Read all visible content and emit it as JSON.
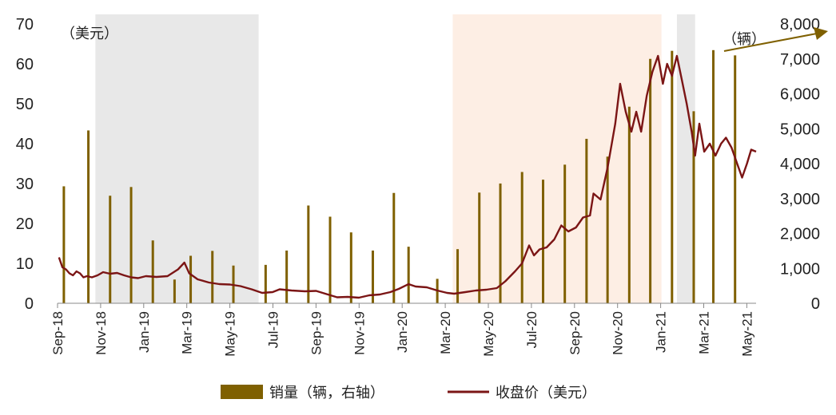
{
  "chart_data": {
    "type": "bar+line",
    "x_labels": [
      "Sep-18",
      "Nov-18",
      "Jan-19",
      "Mar-19",
      "May-19",
      "Jul-19",
      "Sep-19",
      "Nov-19",
      "Jan-20",
      "Mar-20",
      "May-20",
      "Jul-20",
      "Sep-20",
      "Nov-20",
      "Jan-21",
      "Mar-21",
      "May-21"
    ],
    "x_range": [
      "2018-09-01",
      "2021-05-25"
    ],
    "y_left": {
      "label": "（美元）",
      "ticks": [
        "0",
        "10",
        "20",
        "30",
        "40",
        "50",
        "60",
        "70"
      ],
      "range": [
        0,
        70
      ]
    },
    "y_right": {
      "label": "（辆）",
      "ticks": [
        "0",
        "1,000",
        "2,000",
        "3,000",
        "4,000",
        "5,000",
        "6,000",
        "7,000",
        "8,000"
      ],
      "range": [
        0,
        8000
      ]
    },
    "shaded_regions": [
      {
        "start": "2018-10-25",
        "end": "2019-06-15",
        "color": "#e8e8e8"
      },
      {
        "start": "2020-03-18",
        "end": "2021-01-10",
        "color": "#fdeee4"
      },
      {
        "start": "2021-02-01",
        "end": "2021-02-27",
        "color": "#e8e8e8"
      }
    ],
    "series": [
      {
        "name": "销量（辆，右轴）",
        "kind": "bar",
        "axis": "right",
        "color": "#7f6000",
        "points": [
          {
            "date": "2018-09-10",
            "value": 3350
          },
          {
            "date": "2018-10-15",
            "value": 4950
          },
          {
            "date": "2018-11-15",
            "value": 3080
          },
          {
            "date": "2018-12-15",
            "value": 3330
          },
          {
            "date": "2019-01-15",
            "value": 1800
          },
          {
            "date": "2019-02-15",
            "value": 680
          },
          {
            "date": "2019-03-10",
            "value": 1360
          },
          {
            "date": "2019-04-10",
            "value": 1500
          },
          {
            "date": "2019-05-10",
            "value": 1080
          },
          {
            "date": "2019-06-25",
            "value": 1100
          },
          {
            "date": "2019-07-25",
            "value": 1510
          },
          {
            "date": "2019-08-25",
            "value": 2800
          },
          {
            "date": "2019-09-25",
            "value": 2480
          },
          {
            "date": "2019-10-25",
            "value": 2030
          },
          {
            "date": "2019-11-25",
            "value": 1510
          },
          {
            "date": "2019-12-25",
            "value": 3160
          },
          {
            "date": "2020-01-15",
            "value": 1620
          },
          {
            "date": "2020-02-25",
            "value": 700
          },
          {
            "date": "2020-03-25",
            "value": 1550
          },
          {
            "date": "2020-04-25",
            "value": 3170
          },
          {
            "date": "2020-05-25",
            "value": 3430
          },
          {
            "date": "2020-06-25",
            "value": 3760
          },
          {
            "date": "2020-07-25",
            "value": 3540
          },
          {
            "date": "2020-08-25",
            "value": 3970
          },
          {
            "date": "2020-09-25",
            "value": 4710
          },
          {
            "date": "2020-10-25",
            "value": 4200
          },
          {
            "date": "2020-11-25",
            "value": 5630
          },
          {
            "date": "2020-12-25",
            "value": 7000
          },
          {
            "date": "2021-01-25",
            "value": 7230
          },
          {
            "date": "2021-02-25",
            "value": 5500
          },
          {
            "date": "2021-03-25",
            "value": 7250
          },
          {
            "date": "2021-04-25",
            "value": 7100
          }
        ]
      },
      {
        "name": "收盘价（美元）",
        "kind": "line",
        "axis": "left",
        "color": "#7b1515",
        "points": [
          {
            "date": "2018-09-03",
            "value": 11.5
          },
          {
            "date": "2018-09-08",
            "value": 9.0
          },
          {
            "date": "2018-09-13",
            "value": 8.5
          },
          {
            "date": "2018-09-18",
            "value": 7.5
          },
          {
            "date": "2018-09-23",
            "value": 7.0
          },
          {
            "date": "2018-09-28",
            "value": 8.0
          },
          {
            "date": "2018-10-03",
            "value": 7.5
          },
          {
            "date": "2018-10-08",
            "value": 6.5
          },
          {
            "date": "2018-10-13",
            "value": 6.8
          },
          {
            "date": "2018-10-20",
            "value": 6.5
          },
          {
            "date": "2018-10-28",
            "value": 7.0
          },
          {
            "date": "2018-11-05",
            "value": 7.8
          },
          {
            "date": "2018-11-15",
            "value": 7.4
          },
          {
            "date": "2018-11-25",
            "value": 7.6
          },
          {
            "date": "2018-12-05",
            "value": 7.0
          },
          {
            "date": "2018-12-15",
            "value": 6.5
          },
          {
            "date": "2018-12-25",
            "value": 6.3
          },
          {
            "date": "2019-01-05",
            "value": 6.8
          },
          {
            "date": "2019-01-20",
            "value": 6.6
          },
          {
            "date": "2019-02-05",
            "value": 6.8
          },
          {
            "date": "2019-02-20",
            "value": 8.5
          },
          {
            "date": "2019-03-01",
            "value": 10.2
          },
          {
            "date": "2019-03-08",
            "value": 7.5
          },
          {
            "date": "2019-03-20",
            "value": 6.0
          },
          {
            "date": "2019-04-05",
            "value": 5.2
          },
          {
            "date": "2019-04-20",
            "value": 4.8
          },
          {
            "date": "2019-05-05",
            "value": 4.7
          },
          {
            "date": "2019-05-20",
            "value": 4.3
          },
          {
            "date": "2019-06-05",
            "value": 3.5
          },
          {
            "date": "2019-06-20",
            "value": 2.6
          },
          {
            "date": "2019-07-05",
            "value": 2.8
          },
          {
            "date": "2019-07-15",
            "value": 3.5
          },
          {
            "date": "2019-08-01",
            "value": 3.2
          },
          {
            "date": "2019-08-20",
            "value": 3.0
          },
          {
            "date": "2019-09-05",
            "value": 3.1
          },
          {
            "date": "2019-09-20",
            "value": 2.3
          },
          {
            "date": "2019-10-05",
            "value": 1.5
          },
          {
            "date": "2019-10-20",
            "value": 1.6
          },
          {
            "date": "2019-11-05",
            "value": 1.4
          },
          {
            "date": "2019-11-20",
            "value": 2.0
          },
          {
            "date": "2019-12-05",
            "value": 2.2
          },
          {
            "date": "2019-12-20",
            "value": 2.8
          },
          {
            "date": "2020-01-01",
            "value": 3.6
          },
          {
            "date": "2020-01-15",
            "value": 4.8
          },
          {
            "date": "2020-01-25",
            "value": 4.2
          },
          {
            "date": "2020-02-10",
            "value": 4.0
          },
          {
            "date": "2020-02-25",
            "value": 3.2
          },
          {
            "date": "2020-03-10",
            "value": 2.6
          },
          {
            "date": "2020-03-20",
            "value": 2.4
          },
          {
            "date": "2020-04-05",
            "value": 2.8
          },
          {
            "date": "2020-04-20",
            "value": 3.2
          },
          {
            "date": "2020-05-05",
            "value": 3.4
          },
          {
            "date": "2020-05-20",
            "value": 3.8
          },
          {
            "date": "2020-06-01",
            "value": 5.5
          },
          {
            "date": "2020-06-15",
            "value": 8.0
          },
          {
            "date": "2020-06-25",
            "value": 10.0
          },
          {
            "date": "2020-07-05",
            "value": 14.5
          },
          {
            "date": "2020-07-12",
            "value": 12.0
          },
          {
            "date": "2020-07-20",
            "value": 13.5
          },
          {
            "date": "2020-07-30",
            "value": 14.0
          },
          {
            "date": "2020-08-10",
            "value": 16.0
          },
          {
            "date": "2020-08-20",
            "value": 19.5
          },
          {
            "date": "2020-08-30",
            "value": 18.0
          },
          {
            "date": "2020-09-10",
            "value": 19.0
          },
          {
            "date": "2020-09-20",
            "value": 21.5
          },
          {
            "date": "2020-09-30",
            "value": 22.0
          },
          {
            "date": "2020-10-05",
            "value": 27.5
          },
          {
            "date": "2020-10-15",
            "value": 26.0
          },
          {
            "date": "2020-10-25",
            "value": 34.0
          },
          {
            "date": "2020-11-05",
            "value": 45.0
          },
          {
            "date": "2020-11-12",
            "value": 55.0
          },
          {
            "date": "2020-11-20",
            "value": 48.0
          },
          {
            "date": "2020-11-28",
            "value": 43.0
          },
          {
            "date": "2020-12-05",
            "value": 48.0
          },
          {
            "date": "2020-12-12",
            "value": 43.0
          },
          {
            "date": "2020-12-20",
            "value": 52.0
          },
          {
            "date": "2020-12-28",
            "value": 58.0
          },
          {
            "date": "2021-01-05",
            "value": 62.0
          },
          {
            "date": "2021-01-12",
            "value": 55.0
          },
          {
            "date": "2021-01-18",
            "value": 60.0
          },
          {
            "date": "2021-01-25",
            "value": 57.0
          },
          {
            "date": "2021-02-01",
            "value": 62.0
          },
          {
            "date": "2021-02-08",
            "value": 56.0
          },
          {
            "date": "2021-02-15",
            "value": 50.0
          },
          {
            "date": "2021-02-22",
            "value": 43.0
          },
          {
            "date": "2021-02-27",
            "value": 37.0
          },
          {
            "date": "2021-03-05",
            "value": 45.0
          },
          {
            "date": "2021-03-12",
            "value": 38.0
          },
          {
            "date": "2021-03-20",
            "value": 40.0
          },
          {
            "date": "2021-03-28",
            "value": 37.0
          },
          {
            "date": "2021-04-05",
            "value": 40.0
          },
          {
            "date": "2021-04-12",
            "value": 41.5
          },
          {
            "date": "2021-04-20",
            "value": 39.0
          },
          {
            "date": "2021-04-28",
            "value": 35.0
          },
          {
            "date": "2021-05-05",
            "value": 31.5
          },
          {
            "date": "2021-05-12",
            "value": 35.0
          },
          {
            "date": "2021-05-18",
            "value": 38.5
          },
          {
            "date": "2021-05-25",
            "value": 38.0
          }
        ]
      }
    ],
    "legend": {
      "placement": "bottom",
      "items": [
        {
          "label": "销量（辆，右轴）",
          "swatch": "bar",
          "color": "#7f6000"
        },
        {
          "label": "收盘价（美元）",
          "swatch": "line",
          "color": "#7b1515"
        }
      ]
    },
    "annotation_arrow_color": "#7f6000"
  }
}
